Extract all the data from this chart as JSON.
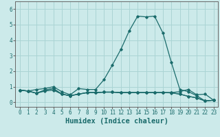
{
  "xlabel": "Humidex (Indice chaleur)",
  "xlim": [
    -0.5,
    23.5
  ],
  "ylim": [
    -0.3,
    6.5
  ],
  "background_color": "#cceaea",
  "grid_color": "#aad4d4",
  "line_color": "#1a6b6b",
  "series": [
    [
      0.78,
      0.72,
      0.82,
      0.88,
      1.0,
      0.68,
      0.48,
      0.88,
      0.82,
      0.82,
      1.45,
      2.4,
      3.4,
      4.6,
      5.55,
      5.5,
      5.55,
      4.45,
      2.55,
      0.82,
      0.68,
      0.42,
      0.08,
      0.13
    ],
    [
      0.78,
      0.72,
      0.58,
      0.72,
      0.78,
      0.52,
      0.42,
      0.52,
      0.62,
      0.62,
      0.65,
      0.65,
      0.62,
      0.62,
      0.62,
      0.62,
      0.62,
      0.62,
      0.6,
      0.52,
      0.38,
      0.28,
      0.08,
      0.13
    ],
    [
      0.78,
      0.72,
      0.58,
      0.78,
      0.88,
      0.52,
      0.42,
      0.52,
      0.62,
      0.62,
      0.65,
      0.65,
      0.62,
      0.62,
      0.62,
      0.62,
      0.62,
      0.62,
      0.62,
      0.68,
      0.82,
      0.48,
      0.52,
      0.13
    ],
    [
      0.78,
      0.72,
      0.58,
      0.78,
      0.88,
      0.52,
      0.42,
      0.52,
      0.62,
      0.62,
      0.65,
      0.65,
      0.62,
      0.62,
      0.62,
      0.62,
      0.62,
      0.62,
      0.62,
      0.52,
      0.38,
      0.28,
      0.08,
      0.13
    ]
  ],
  "xticks": [
    0,
    1,
    2,
    3,
    4,
    5,
    6,
    7,
    8,
    9,
    10,
    11,
    12,
    13,
    14,
    15,
    16,
    17,
    18,
    19,
    20,
    21,
    22,
    23
  ],
  "yticks": [
    0,
    1,
    2,
    3,
    4,
    5,
    6
  ],
  "tick_fontsize": 5.5,
  "xlabel_fontsize": 7.5
}
